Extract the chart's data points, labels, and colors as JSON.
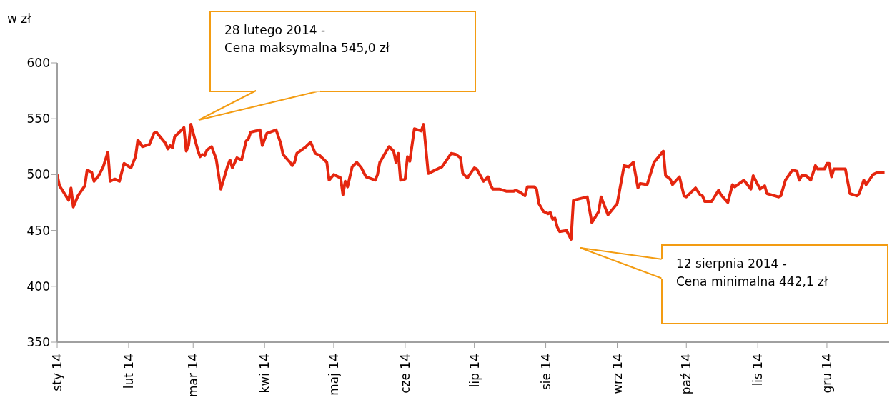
{
  "chart_data": {
    "type": "line",
    "ylabel": "w zł",
    "marker": "none",
    "line_style": "solid",
    "xlim": [
      "2014-01-01",
      "2014-12-28"
    ],
    "ylim": [
      350,
      600
    ],
    "yticks": [
      350,
      400,
      450,
      500,
      550,
      600
    ],
    "xticks": [
      {
        "value": "2014-01-01",
        "label": "sty 14"
      },
      {
        "value": "2014-02-01",
        "label": "lut 14"
      },
      {
        "value": "2014-03-01",
        "label": "mar 14"
      },
      {
        "value": "2014-04-01",
        "label": "kwi 14"
      },
      {
        "value": "2014-05-01",
        "label": "maj 14"
      },
      {
        "value": "2014-06-01",
        "label": "cze 14"
      },
      {
        "value": "2014-07-01",
        "label": "lip 14"
      },
      {
        "value": "2014-08-01",
        "label": "sie 14"
      },
      {
        "value": "2014-09-01",
        "label": "wrz 14"
      },
      {
        "value": "2014-10-01",
        "label": "paź 14"
      },
      {
        "value": "2014-11-01",
        "label": "lis 14"
      },
      {
        "value": "2014-12-01",
        "label": "gru 14"
      }
    ],
    "annotations": [
      "28 lutego 2014 -\nCena maksymalna 545,0 zł",
      "12 sierpnia 2014 -\nCena minimalna 442,1 zł"
    ],
    "x": [
      "2014-01-01",
      "2014-01-02",
      "2014-01-06",
      "2014-01-07",
      "2014-01-08",
      "2014-01-10",
      "2014-01-13",
      "2014-01-14",
      "2014-01-16",
      "2014-01-17",
      "2014-01-19",
      "2014-01-21",
      "2014-01-23",
      "2014-01-24",
      "2014-01-26",
      "2014-01-28",
      "2014-01-30",
      "2014-02-02",
      "2014-02-04",
      "2014-02-05",
      "2014-02-07",
      "2014-02-10",
      "2014-02-12",
      "2014-02-13",
      "2014-02-17",
      "2014-02-18",
      "2014-02-19",
      "2014-02-20",
      "2014-02-21",
      "2014-02-24",
      "2014-02-25",
      "2014-02-26",
      "2014-02-27",
      "2014-02-28",
      "2014-03-03",
      "2014-03-04",
      "2014-03-05",
      "2014-03-06",
      "2014-03-07",
      "2014-03-09",
      "2014-03-11",
      "2014-03-13",
      "2014-03-16",
      "2014-03-17",
      "2014-03-18",
      "2014-03-20",
      "2014-03-22",
      "2014-03-24",
      "2014-03-25",
      "2014-03-26",
      "2014-03-30",
      "2014-03-31",
      "2014-04-02",
      "2014-04-06",
      "2014-04-08",
      "2014-04-09",
      "2014-04-12",
      "2014-04-13",
      "2014-04-14",
      "2014-04-15",
      "2014-04-19",
      "2014-04-21",
      "2014-04-23",
      "2014-04-25",
      "2014-04-28",
      "2014-04-29",
      "2014-05-01",
      "2014-05-04",
      "2014-05-05",
      "2014-05-06",
      "2014-05-07",
      "2014-05-09",
      "2014-05-11",
      "2014-05-13",
      "2014-05-15",
      "2014-05-19",
      "2014-05-20",
      "2014-05-21",
      "2014-05-25",
      "2014-05-27",
      "2014-05-28",
      "2014-05-29",
      "2014-05-30",
      "2014-06-01",
      "2014-06-02",
      "2014-06-03",
      "2014-06-05",
      "2014-06-08",
      "2014-06-09",
      "2014-06-11",
      "2014-06-15",
      "2014-06-17",
      "2014-06-19",
      "2014-06-21",
      "2014-06-23",
      "2014-06-25",
      "2014-06-26",
      "2014-06-28",
      "2014-07-01",
      "2014-07-02",
      "2014-07-05",
      "2014-07-07",
      "2014-07-08",
      "2014-07-09",
      "2014-07-12",
      "2014-07-15",
      "2014-07-18",
      "2014-07-19",
      "2014-07-21",
      "2014-07-23",
      "2014-07-24",
      "2014-07-27",
      "2014-07-28",
      "2014-07-29",
      "2014-07-31",
      "2014-08-02",
      "2014-08-03",
      "2014-08-04",
      "2014-08-05",
      "2014-08-06",
      "2014-08-07",
      "2014-08-10",
      "2014-08-12",
      "2014-08-13",
      "2014-08-19",
      "2014-08-21",
      "2014-08-24",
      "2014-08-25",
      "2014-08-28",
      "2014-09-01",
      "2014-09-04",
      "2014-09-06",
      "2014-09-08",
      "2014-09-10",
      "2014-09-11",
      "2014-09-14",
      "2014-09-17",
      "2014-09-21",
      "2014-09-22",
      "2014-09-24",
      "2014-09-25",
      "2014-09-28",
      "2014-09-30",
      "2014-10-01",
      "2014-10-05",
      "2014-10-07",
      "2014-10-08",
      "2014-10-09",
      "2014-10-12",
      "2014-10-15",
      "2014-10-16",
      "2014-10-19",
      "2014-10-21",
      "2014-10-22",
      "2014-10-26",
      "2014-10-29",
      "2014-10-30",
      "2014-11-02",
      "2014-11-04",
      "2014-11-05",
      "2014-11-10",
      "2014-11-11",
      "2014-11-13",
      "2014-11-16",
      "2014-11-18",
      "2014-11-19",
      "2014-11-20",
      "2014-11-22",
      "2014-11-24",
      "2014-11-26",
      "2014-11-27",
      "2014-11-30",
      "2014-12-01",
      "2014-12-02",
      "2014-12-03",
      "2014-12-04",
      "2014-12-09",
      "2014-12-11",
      "2014-12-14",
      "2014-12-15",
      "2014-12-17",
      "2014-12-18",
      "2014-12-21",
      "2014-12-23",
      "2014-12-26"
    ],
    "series": [
      {
        "color": "#e5260f",
        "values": [
          500,
          490,
          477,
          488,
          471,
          481,
          490,
          504,
          502,
          494,
          499,
          507,
          520,
          494,
          496,
          494,
          510,
          506,
          516,
          531,
          525,
          527,
          537,
          538,
          528,
          523,
          526,
          524,
          534,
          540,
          542,
          521,
          526,
          545,
          522,
          516,
          518,
          517,
          522,
          525,
          514,
          487,
          508,
          513,
          506,
          515,
          513,
          530,
          532,
          538,
          540,
          526,
          537,
          540,
          528,
          518,
          511,
          508,
          511,
          519,
          525,
          529,
          519,
          517,
          511,
          495,
          500,
          497,
          482,
          494,
          489,
          507,
          511,
          506,
          498,
          495,
          500,
          511,
          525,
          521,
          511,
          519,
          495,
          496,
          516,
          512,
          541,
          539,
          545,
          501,
          505,
          507,
          513,
          519,
          518,
          515,
          501,
          497,
          506,
          505,
          494,
          498,
          491,
          487,
          487,
          485,
          485,
          486,
          484,
          481,
          489,
          489,
          487,
          474,
          467,
          465,
          466,
          460,
          461,
          453,
          449,
          450,
          442.1,
          477,
          480,
          457,
          467,
          480,
          464,
          474,
          508,
          507,
          511,
          488,
          492,
          491,
          511,
          521,
          499,
          496,
          491,
          498,
          481,
          480,
          488,
          482,
          481,
          476,
          476,
          486,
          482,
          475,
          491,
          489,
          495,
          487,
          499,
          487,
          490,
          483,
          480,
          481,
          495,
          504,
          503,
          495,
          499,
          499,
          495,
          508,
          505,
          505,
          510,
          510,
          498,
          505,
          505,
          483,
          481,
          483,
          495,
          491,
          500,
          502,
          502
        ]
      }
    ]
  }
}
